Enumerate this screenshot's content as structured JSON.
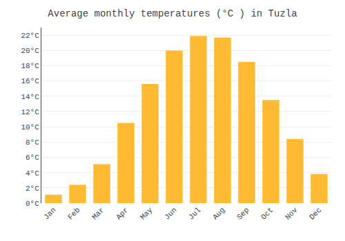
{
  "chart_data": {
    "type": "bar",
    "title": "Average monthly temperatures (°C ) in Tuzla",
    "categories": [
      "Jan",
      "Feb",
      "Mar",
      "Apr",
      "May",
      "Jun",
      "Jul",
      "Aug",
      "Sep",
      "Oct",
      "Nov",
      "Dec"
    ],
    "values": [
      1.1,
      2.4,
      5.1,
      10.5,
      15.6,
      20.0,
      21.9,
      21.7,
      18.5,
      13.5,
      8.4,
      3.8
    ],
    "color": "#FFBB33",
    "ylim": [
      0,
      23
    ],
    "yticks": [
      {
        "value": 0,
        "label": "0°C"
      },
      {
        "value": 2,
        "label": "2°C"
      },
      {
        "value": 4,
        "label": "4°C"
      },
      {
        "value": 6,
        "label": "6°C"
      },
      {
        "value": 8,
        "label": "8°C"
      },
      {
        "value": 10,
        "label": "10°C"
      },
      {
        "value": 12,
        "label": "12°C"
      },
      {
        "value": 14,
        "label": "14°C"
      },
      {
        "value": 16,
        "label": "16°C"
      },
      {
        "value": 18,
        "label": "18°C"
      },
      {
        "value": 20,
        "label": "20°C"
      },
      {
        "value": 22,
        "label": "22°C"
      }
    ],
    "grid": true
  }
}
